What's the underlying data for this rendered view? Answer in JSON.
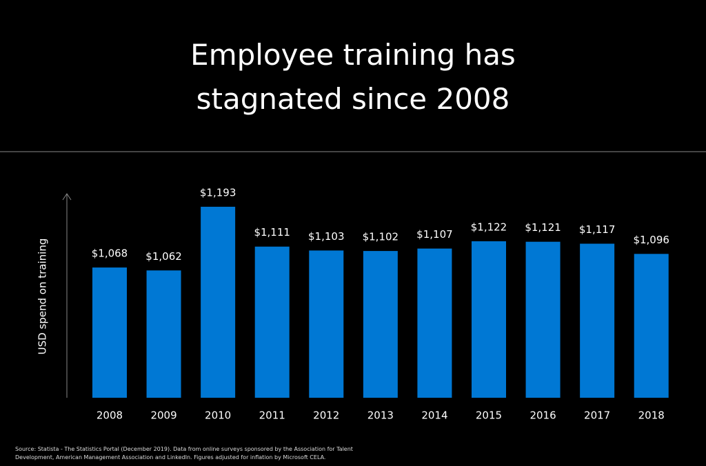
{
  "chart_data": {
    "type": "bar",
    "title": "Employee training has stagnated since 2008",
    "y_label": "USD spend on training",
    "source": "Source: Statista - The Statistics Portal (December 2019). Data from online surveys sponsored by the Association for Talent Development, American Management Association and  LinkedIn. Figures adjusted for inflation by Microsoft CELA.",
    "categories": [
      "2008",
      "2009",
      "2010",
      "2011",
      "2012",
      "2013",
      "2014",
      "2015",
      "2016",
      "2017",
      "2018"
    ],
    "values": [
      1068,
      1062,
      1193,
      1111,
      1103,
      1102,
      1107,
      1122,
      1121,
      1117,
      1096
    ],
    "value_labels": [
      "$1,068",
      "$1,062",
      "$1,193",
      "$1,111",
      "$1,103",
      "$1,102",
      "$1,107",
      "$1,122",
      "$1,121",
      "$1,117",
      "$1,096"
    ],
    "color": "#0078d4",
    "ylim": [
      800,
      1200
    ]
  }
}
